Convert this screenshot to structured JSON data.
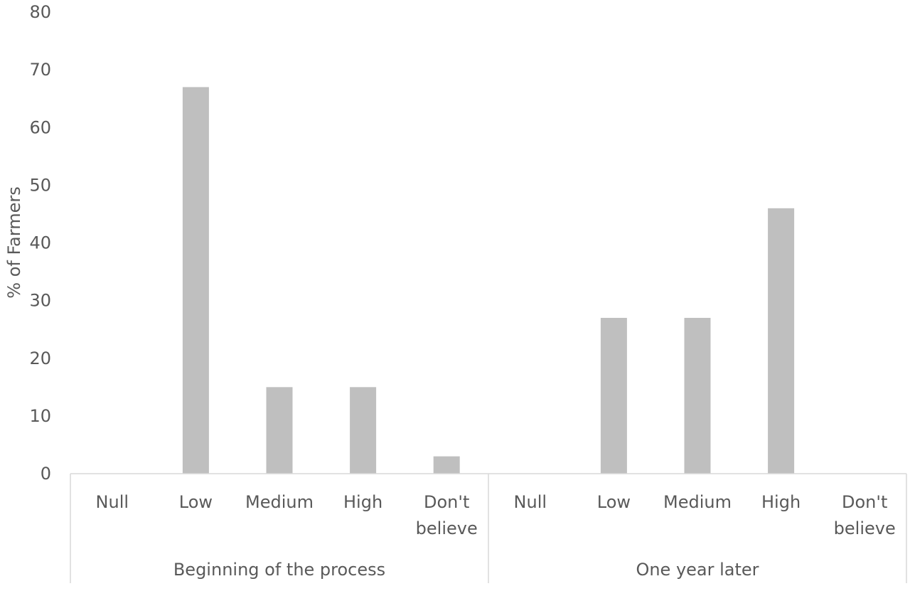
{
  "chart_data": {
    "type": "bar",
    "groups": [
      {
        "label": "Beginning of the process",
        "categories": [
          "Null",
          "Low",
          "Medium",
          "High",
          "Don't believe"
        ],
        "values": [
          0,
          67,
          15,
          15,
          3
        ]
      },
      {
        "label": "One year later",
        "categories": [
          "Null",
          "Low",
          "Medium",
          "High",
          "Don't believe"
        ],
        "values": [
          0,
          27,
          27,
          46,
          0
        ]
      }
    ],
    "title": "",
    "xlabel": "",
    "ylabel": "% of Farmers",
    "ylim": [
      0,
      80
    ],
    "yticks": [
      0,
      10,
      20,
      30,
      40,
      50,
      60,
      70,
      80
    ],
    "grid": false,
    "bar_color": "#bfbfbf",
    "axis_color": "#d9d9d9",
    "text_color": "#595959"
  }
}
